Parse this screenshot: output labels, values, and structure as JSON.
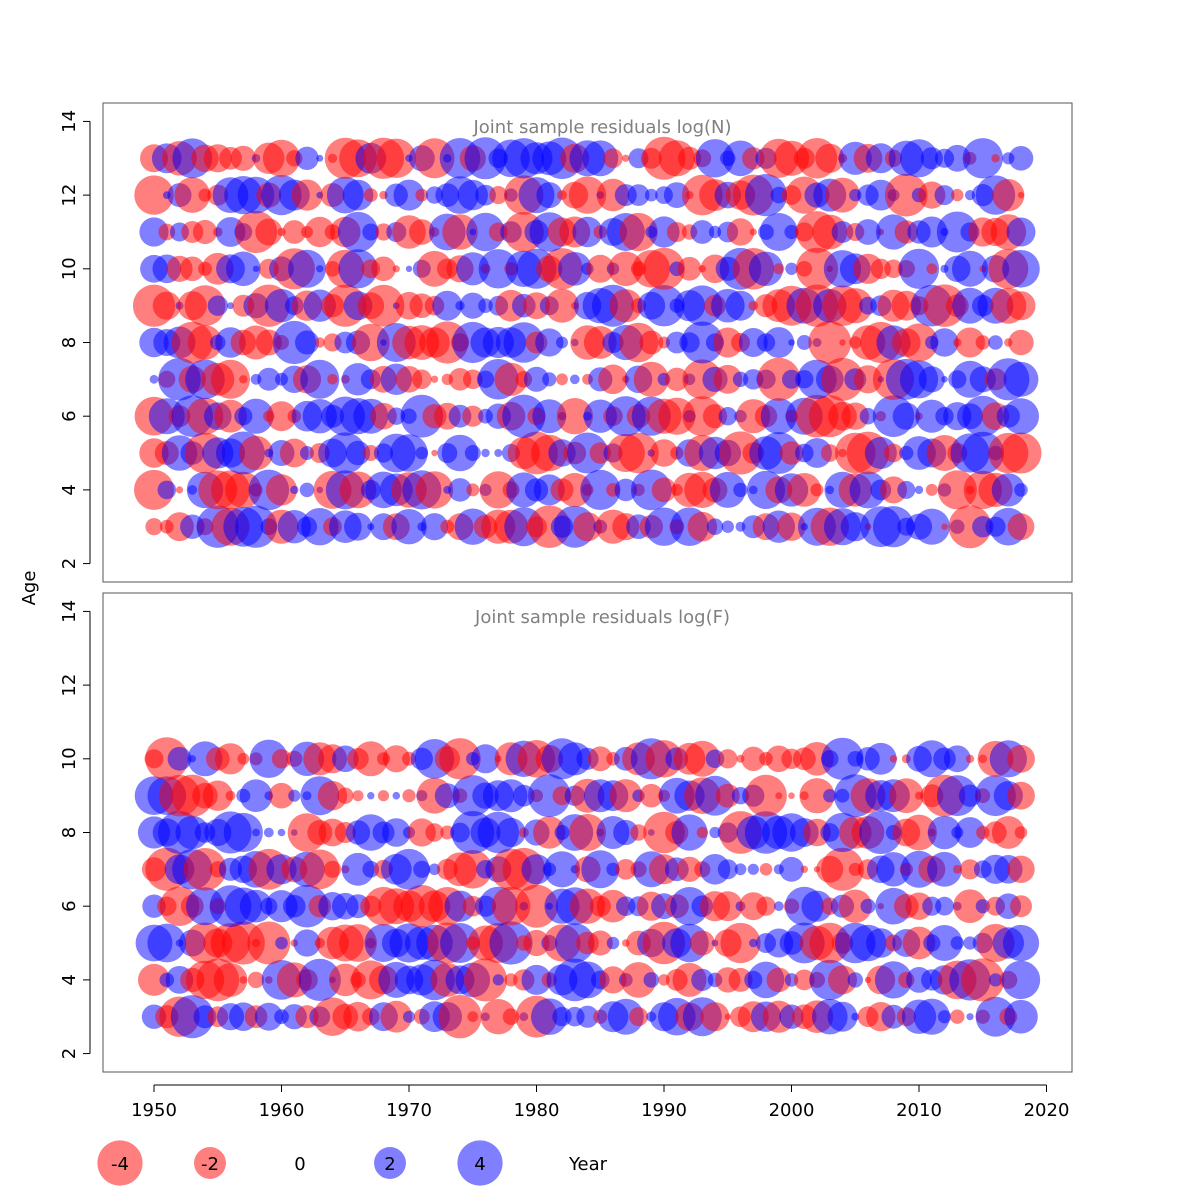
{
  "chart_data": [
    {
      "type": "scatter",
      "title": "Joint sample residuals log(N)",
      "xlim": [
        1946,
        2022
      ],
      "ylim": [
        1.5,
        14.5
      ],
      "yticks": [
        2,
        4,
        6,
        8,
        10,
        12,
        14
      ],
      "ages": [
        3,
        4,
        5,
        6,
        7,
        8,
        9,
        10,
        11,
        12,
        13
      ],
      "years_range": [
        1950,
        2018
      ],
      "note": "bubble area proportional to |residual|; red = negative, blue = positive"
    },
    {
      "type": "scatter",
      "title": "Joint sample residuals log(F)",
      "xlim": [
        1946,
        2022
      ],
      "ylim": [
        1.5,
        14.5
      ],
      "yticks": [
        2,
        4,
        6,
        8,
        10,
        12,
        14
      ],
      "ages": [
        3,
        4,
        5,
        6,
        7,
        8,
        9,
        10
      ],
      "years_range": [
        1950,
        2018
      ],
      "note": "bubble area proportional to |residual|; red = negative, blue = positive"
    }
  ],
  "xaxis": {
    "label": "Year",
    "ticks": [
      1950,
      1960,
      1970,
      1980,
      1990,
      2000,
      2010,
      2020
    ]
  },
  "yaxis": {
    "label": "Age"
  },
  "legend": {
    "items": [
      {
        "label": "-4",
        "value": -4
      },
      {
        "label": "-2",
        "value": -2
      },
      {
        "label": "0",
        "value": 0
      },
      {
        "label": "2",
        "value": 2
      },
      {
        "label": "4",
        "value": 4
      }
    ]
  },
  "colors": {
    "negative": "#ff0000",
    "positive": "#0000ff",
    "title": "#808080",
    "axis": "#000000"
  }
}
